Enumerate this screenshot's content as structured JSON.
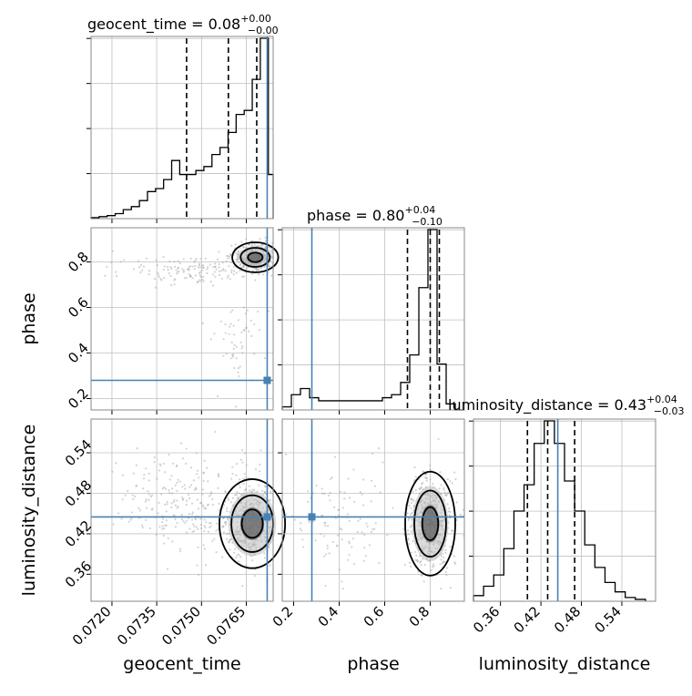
{
  "chart_data": {
    "type": "corner",
    "parameters": [
      "geocent_time",
      "phase",
      "luminosity_distance"
    ],
    "truth": {
      "geocent_time": 0.0772,
      "phase": 0.28,
      "luminosity_distance": 0.445
    },
    "colors": {
      "truth": "#4682b4",
      "contour": "#000000",
      "scatter": "#9e9e9e",
      "grid": "#c0c0c0"
    },
    "titles": [
      {
        "param": "geocent_time",
        "text": "geocent_time = 0.08",
        "plus": "+0.00",
        "minus": "−0.00"
      },
      {
        "param": "phase",
        "text": "phase = 0.80",
        "plus": "+0.04",
        "minus": "−0.10"
      },
      {
        "param": "luminosity_distance",
        "text": "luminosity_distance = 0.43",
        "plus": "+0.04",
        "minus": "−0.03"
      }
    ],
    "axis_labels": {
      "x": [
        "geocent_time",
        "phase",
        "luminosity_distance"
      ],
      "y": [
        "phase",
        "luminosity_distance"
      ]
    },
    "ticks": {
      "geocent_time": [
        "0.0720",
        "0.0735",
        "0.0750",
        "0.0765"
      ],
      "phase": [
        "0.2",
        "0.4",
        "0.6",
        "0.8"
      ],
      "phase_y": [
        "0.2",
        "0.4",
        "0.6",
        "0.8"
      ],
      "luminosity_distance": [
        "0.36",
        "0.42",
        "0.48",
        "0.54"
      ]
    },
    "ranges": {
      "geocent_time": [
        0.0713,
        0.0774
      ],
      "phase": [
        0.15,
        0.95
      ],
      "luminosity_distance": [
        0.32,
        0.59
      ]
    },
    "hist_geocent_time": {
      "edges": [
        0.0713,
        0.07157,
        0.07184,
        0.07211,
        0.07238,
        0.07265,
        0.07292,
        0.07319,
        0.07346,
        0.07373,
        0.074,
        0.07427,
        0.07454,
        0.07481,
        0.07508,
        0.07535,
        0.07562,
        0.07589,
        0.07616,
        0.07643,
        0.0767,
        0.07697,
        0.07724,
        0.0774
      ],
      "counts": [
        1,
        2,
        3,
        5,
        9,
        12,
        18,
        27,
        30,
        39,
        58,
        44,
        44,
        48,
        52,
        64,
        71,
        86,
        104,
        108,
        139,
        180,
        44
      ]
    },
    "hist_phase": {
      "edges": [
        0.15,
        0.19,
        0.23,
        0.27,
        0.31,
        0.35,
        0.39,
        0.43,
        0.47,
        0.51,
        0.55,
        0.59,
        0.63,
        0.67,
        0.71,
        0.75,
        0.79,
        0.83,
        0.87,
        0.91,
        0.95
      ],
      "counts": [
        2,
        10,
        14,
        8,
        6,
        6,
        6,
        6,
        6,
        6,
        6,
        8,
        10,
        18,
        36,
        80,
        118,
        30,
        4,
        0
      ]
    },
    "hist_luminosity_distance": {
      "edges": [
        0.32,
        0.335,
        0.35,
        0.365,
        0.38,
        0.395,
        0.41,
        0.425,
        0.44,
        0.455,
        0.47,
        0.485,
        0.5,
        0.515,
        0.53,
        0.545,
        0.56,
        0.575
      ],
      "counts": [
        3,
        8,
        14,
        28,
        48,
        62,
        84,
        96,
        84,
        64,
        48,
        30,
        18,
        10,
        5,
        2,
        1
      ]
    },
    "quantiles": {
      "geocent_time": [
        0.0745,
        0.0759,
        0.07685
      ],
      "phase": [
        0.7,
        0.8,
        0.84
      ],
      "luminosity_distance": [
        0.4,
        0.43,
        0.47
      ]
    }
  }
}
